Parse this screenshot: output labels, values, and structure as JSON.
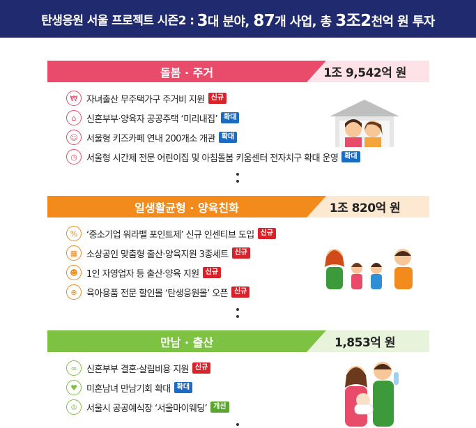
{
  "header": {
    "prefix": "탄생응원 서울 프로젝트 시즌2 :",
    "n1": "3",
    "w1": "대 분야, ",
    "n2": "87",
    "w2": "개 사업, 총 ",
    "n3": "3조2",
    "w3": "천억 원 투자"
  },
  "sections": [
    {
      "title": "돌봄 · 주거",
      "amount": "1조 9,542억 원",
      "color": "#e94b6a",
      "light": "#fde3e7",
      "items": [
        {
          "icon": "money-house-icon",
          "text": "자녀출산 무주택가구 주거비 지원",
          "badge": "신규",
          "badge_type": "new"
        },
        {
          "icon": "house-icon",
          "text": "신혼부부·양육자 공공주택 ‘미리내집’",
          "badge": "확대",
          "badge_type": "exp"
        },
        {
          "icon": "kids-icon",
          "text": "서울형 키즈카페 연내 200개소 개관",
          "badge": "확대",
          "badge_type": "exp"
        },
        {
          "icon": "clock-icon",
          "text": "서울형 시간제 전문 어린이집 및 아침돌봄 키움센터 전자치구 확대 운영",
          "badge": "확대",
          "badge_type": "exp"
        }
      ]
    },
    {
      "title": "일생활균형 · 양육친화",
      "amount": "1조 820억 원",
      "color": "#f28a1c",
      "light": "#fde9d2",
      "items": [
        {
          "icon": "briefcase-icon",
          "text": "‘중소기업 워라밸 포인트제’ 신규 인센티브 도입",
          "badge": "신규",
          "badge_type": "new"
        },
        {
          "icon": "store-icon",
          "text": "소상공인 맞춤형 출산·양육지원 3종세트",
          "badge": "신규",
          "badge_type": "new"
        },
        {
          "icon": "worker-icon",
          "text": "1인 자영업자 등 출산·양육 지원",
          "badge": "신규",
          "badge_type": "new"
        },
        {
          "icon": "shop-icon",
          "text": "육아용품 전문 할인몰 ‘탄생응원몰’ 오픈",
          "badge": "신규",
          "badge_type": "new"
        }
      ]
    },
    {
      "title": "만남 · 출산",
      "amount": "1,853억 원",
      "color": "#7dc242",
      "light": "#e7f3da",
      "items": [
        {
          "icon": "rings-icon",
          "text": "신혼부부 결혼·살림비용 지원",
          "badge": "신규",
          "badge_type": "new"
        },
        {
          "icon": "couple-icon",
          "text": "미혼남녀 만남기회 확대",
          "badge": "확대",
          "badge_type": "exp"
        },
        {
          "icon": "wedding-hall-icon",
          "text": "서울시 공공예식장 ‘서울마이웨딩’",
          "badge": "개선",
          "badge_type": "imp"
        }
      ]
    }
  ]
}
